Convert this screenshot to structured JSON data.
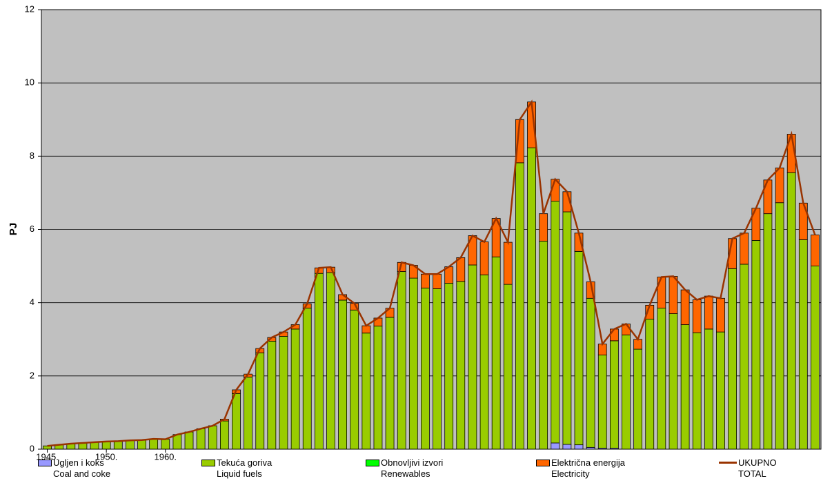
{
  "chart_data": {
    "type": "bar",
    "stacked": true,
    "y_label": "PJ",
    "ylim": [
      0,
      12
    ],
    "yticks": [
      0,
      2,
      4,
      6,
      8,
      10,
      12
    ],
    "grid": true,
    "plot_background": "#c0c0c0",
    "categories": [
      "1945.",
      null,
      null,
      null,
      null,
      "1950.",
      null,
      null,
      null,
      null,
      "1960.",
      null,
      null,
      null,
      null,
      null,
      null,
      null,
      null,
      null,
      null,
      null,
      null,
      null,
      null,
      null,
      null,
      null,
      null,
      null,
      null,
      null,
      null,
      null,
      null,
      null,
      null,
      null,
      null,
      null,
      null,
      null,
      null,
      null,
      null,
      null,
      null,
      null,
      null,
      null,
      null,
      null,
      null,
      null,
      null,
      null,
      null,
      null,
      null,
      null,
      null,
      null,
      null,
      null,
      null,
      null
    ],
    "series": [
      {
        "name": "Ugljen i koks\nCoal and coke",
        "color": "#9999ff",
        "type": "bar",
        "values": [
          0,
          0,
          0,
          0,
          0,
          0,
          0,
          0,
          0,
          0,
          0,
          0,
          0,
          0,
          0,
          0,
          0,
          0,
          0,
          0,
          0,
          0,
          0,
          0,
          0,
          0,
          0,
          0,
          0,
          0,
          0,
          0,
          0,
          0,
          0,
          0,
          0,
          0,
          0,
          0,
          0,
          0,
          0,
          0.17,
          0.13,
          0.12,
          0.05,
          0.03,
          0.03,
          0,
          0,
          0,
          0,
          0,
          0,
          0,
          0,
          0,
          0,
          0,
          0,
          0,
          0,
          0,
          0,
          0
        ]
      },
      {
        "name": "Tekuća goriva\nLiquid fuels",
        "color": "#99cc00",
        "type": "bar",
        "values": [
          0.09,
          0.12,
          0.15,
          0.17,
          0.19,
          0.21,
          0.22,
          0.24,
          0.25,
          0.28,
          0.27,
          0.4,
          0.47,
          0.56,
          0.64,
          0.77,
          1.52,
          1.97,
          2.63,
          2.95,
          3.08,
          3.28,
          3.85,
          4.8,
          4.82,
          4.07,
          3.8,
          3.17,
          3.36,
          3.6,
          4.85,
          4.67,
          4.4,
          4.38,
          4.53,
          4.58,
          5.03,
          4.76,
          5.25,
          4.5,
          7.82,
          8.23,
          5.68,
          6.6,
          6.35,
          5.28,
          4.07,
          2.54,
          2.93,
          3.12,
          2.73,
          3.55,
          3.85,
          3.7,
          3.4,
          3.18,
          3.28,
          3.2,
          4.93,
          5.05,
          5.7,
          6.43,
          6.73,
          7.55,
          5.72,
          5.0
        ]
      },
      {
        "name": "Obnovljivi izvori\nRenewables",
        "color": "#00ff00",
        "type": "bar",
        "values": [
          0,
          0,
          0,
          0,
          0,
          0,
          0,
          0,
          0,
          0,
          0,
          0,
          0,
          0,
          0,
          0,
          0,
          0,
          0,
          0,
          0,
          0,
          0,
          0,
          0,
          0,
          0,
          0,
          0,
          0,
          0,
          0,
          0,
          0,
          0,
          0,
          0,
          0,
          0,
          0,
          0,
          0,
          0,
          0,
          0,
          0,
          0,
          0,
          0,
          0,
          0,
          0,
          0,
          0,
          0,
          0,
          0,
          0,
          0,
          0,
          0,
          0,
          0,
          0,
          0,
          0
        ]
      },
      {
        "name": "Električna energija\nElectricity",
        "color": "#ff6600",
        "type": "bar",
        "values": [
          0,
          0,
          0,
          0,
          0,
          0,
          0,
          0,
          0,
          0,
          0,
          0,
          0,
          0,
          0,
          0.05,
          0.1,
          0.08,
          0.12,
          0.1,
          0.12,
          0.12,
          0.12,
          0.15,
          0.15,
          0.15,
          0.18,
          0.2,
          0.22,
          0.25,
          0.25,
          0.35,
          0.38,
          0.4,
          0.45,
          0.65,
          0.8,
          0.9,
          1.05,
          1.15,
          1.18,
          1.25,
          0.75,
          0.6,
          0.55,
          0.5,
          0.45,
          0.3,
          0.32,
          0.3,
          0.27,
          0.38,
          0.85,
          1.02,
          0.95,
          0.9,
          0.9,
          0.92,
          0.82,
          0.85,
          0.88,
          0.92,
          0.95,
          1.05,
          1.0,
          0.85
        ]
      },
      {
        "name": "UKUPNO\nTOTAL",
        "color": "#993300",
        "type": "line",
        "values": [
          0.09,
          0.12,
          0.15,
          0.17,
          0.19,
          0.21,
          0.22,
          0.24,
          0.25,
          0.28,
          0.27,
          0.4,
          0.47,
          0.56,
          0.64,
          0.82,
          1.62,
          2.05,
          2.75,
          3.05,
          3.2,
          3.4,
          3.97,
          4.95,
          4.97,
          4.22,
          3.98,
          3.37,
          3.58,
          3.85,
          5.1,
          5.02,
          4.78,
          4.78,
          4.98,
          5.23,
          5.83,
          5.66,
          6.3,
          5.65,
          9.0,
          9.48,
          6.43,
          7.37,
          7.03,
          5.9,
          4.57,
          2.87,
          3.28,
          3.42,
          3.0,
          3.93,
          4.7,
          4.72,
          4.35,
          4.08,
          4.18,
          4.12,
          5.75,
          5.9,
          6.58,
          7.35,
          7.68,
          8.6,
          6.72,
          5.85
        ]
      }
    ]
  }
}
